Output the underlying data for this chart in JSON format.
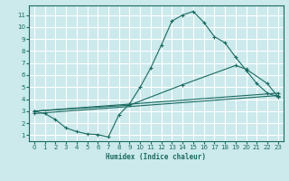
{
  "xlabel": "Humidex (Indice chaleur)",
  "bg_color": "#cce9ec",
  "grid_color": "#ffffff",
  "line_color": "#1a6b60",
  "xlim": [
    -0.5,
    23.5
  ],
  "ylim": [
    0.5,
    11.8
  ],
  "xticks": [
    0,
    1,
    2,
    3,
    4,
    5,
    6,
    7,
    8,
    9,
    10,
    11,
    12,
    13,
    14,
    15,
    16,
    17,
    18,
    19,
    20,
    21,
    22,
    23
  ],
  "yticks": [
    1,
    2,
    3,
    4,
    5,
    6,
    7,
    8,
    9,
    10,
    11
  ],
  "curve1_x": [
    0,
    1,
    2,
    3,
    4,
    5,
    6,
    7,
    8,
    9,
    10,
    11,
    12,
    13,
    14,
    15,
    16,
    17,
    18,
    19,
    20,
    21,
    22,
    23
  ],
  "curve1_y": [
    3.0,
    2.8,
    2.3,
    1.6,
    1.3,
    1.1,
    1.05,
    0.85,
    2.7,
    3.6,
    5.0,
    6.6,
    8.5,
    10.5,
    11.0,
    11.3,
    10.4,
    9.2,
    8.7,
    7.5,
    6.4,
    5.3,
    4.5,
    4.2
  ],
  "curve2_x": [
    0,
    23
  ],
  "curve2_y": [
    3.0,
    4.5
  ],
  "curve3_x": [
    0,
    23
  ],
  "curve3_y": [
    2.8,
    4.3
  ],
  "curve4_x": [
    0,
    9,
    14,
    19,
    20,
    22,
    23
  ],
  "curve4_y": [
    3.0,
    3.5,
    5.2,
    6.8,
    6.5,
    5.3,
    4.2
  ]
}
